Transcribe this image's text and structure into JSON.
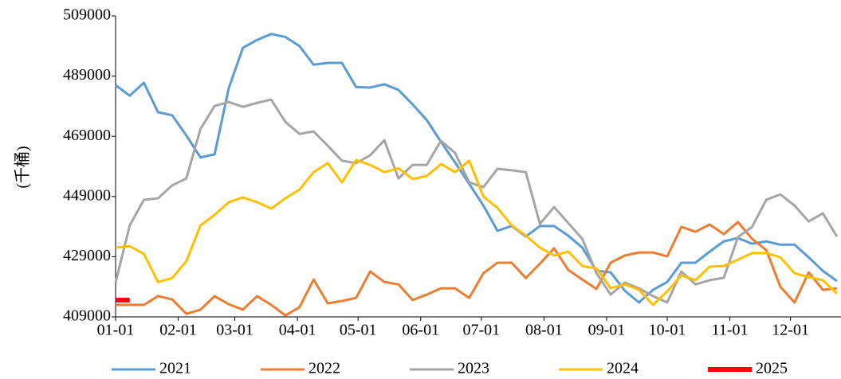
{
  "chart_data": {
    "type": "line",
    "y_label": "(千桶)",
    "x": [
      0,
      7,
      14,
      21,
      28,
      35,
      42,
      49,
      56,
      63,
      70,
      77,
      84,
      91,
      98,
      105,
      112,
      119,
      126,
      133,
      140,
      147,
      154,
      161,
      168,
      175,
      182,
      189,
      196,
      203,
      210,
      217,
      224,
      231,
      238,
      245,
      252,
      259,
      266,
      273,
      280,
      287,
      294,
      301,
      308,
      315,
      322,
      329,
      336,
      343,
      350,
      357
    ],
    "xlim": [
      0,
      359
    ],
    "xticks": [
      {
        "value": 0,
        "label": "01-01"
      },
      {
        "value": 31,
        "label": "02-01"
      },
      {
        "value": 59,
        "label": "03-01"
      },
      {
        "value": 90,
        "label": "04-01"
      },
      {
        "value": 120,
        "label": "05-01"
      },
      {
        "value": 151,
        "label": "06-01"
      },
      {
        "value": 181,
        "label": "07-01"
      },
      {
        "value": 212,
        "label": "08-01"
      },
      {
        "value": 243,
        "label": "09-01"
      },
      {
        "value": 273,
        "label": "10-01"
      },
      {
        "value": 304,
        "label": "11-01"
      },
      {
        "value": 334,
        "label": "12-01"
      }
    ],
    "ylim": [
      409000,
      509000
    ],
    "yticks": [
      409000,
      429000,
      449000,
      469000,
      489000,
      509000
    ],
    "legend": "bottom",
    "series": [
      {
        "name": "2021",
        "color": "#5b9bd5",
        "values": [
          486000,
          482500,
          486800,
          477000,
          476000,
          469300,
          462000,
          463000,
          485000,
          498400,
          501000,
          503000,
          502000,
          499000,
          492800,
          493400,
          493400,
          485400,
          485200,
          486300,
          484400,
          479600,
          474400,
          467200,
          460300,
          453200,
          446000,
          437600,
          439200,
          435700,
          439200,
          439200,
          436000,
          432000,
          424300,
          423800,
          417700,
          413800,
          418000,
          420600,
          427000,
          427000,
          430700,
          434100,
          435200,
          433300,
          434100,
          433000,
          433000,
          428800,
          424300,
          420900
        ]
      },
      {
        "name": "2022",
        "color": "#ed7d31",
        "values": [
          413000,
          413000,
          413000,
          415900,
          414800,
          410000,
          411400,
          415900,
          413200,
          411400,
          415900,
          413000,
          409500,
          412200,
          421400,
          413500,
          414300,
          415300,
          424100,
          420600,
          419800,
          414600,
          416400,
          418500,
          418500,
          415300,
          423500,
          427000,
          427000,
          421900,
          426700,
          431800,
          424600,
          421400,
          418300,
          427000,
          429400,
          430400,
          430400,
          429100,
          438900,
          437300,
          439700,
          436500,
          440500,
          434900,
          431200,
          419000,
          413800,
          423800,
          418000,
          418500
        ]
      },
      {
        "name": "2023",
        "color": "#a5a5a5",
        "values": [
          420400,
          439400,
          447900,
          448400,
          452700,
          455000,
          471400,
          479100,
          480400,
          478800,
          480100,
          481200,
          473800,
          469800,
          470600,
          465900,
          460900,
          460100,
          462700,
          467700,
          455000,
          459500,
          459500,
          467500,
          463500,
          453700,
          452100,
          458200,
          457700,
          457100,
          439900,
          445500,
          440200,
          434900,
          423500,
          416400,
          420400,
          418500,
          415900,
          413800,
          424100,
          419800,
          421200,
          422000,
          435500,
          438900,
          447900,
          449700,
          446000,
          440700,
          443400,
          435700
        ]
      },
      {
        "name": "2024",
        "color": "#ffc000",
        "values": [
          432000,
          432500,
          429900,
          420600,
          421900,
          427500,
          439400,
          442900,
          447100,
          448700,
          447100,
          445000,
          448400,
          451300,
          457100,
          460100,
          453700,
          461100,
          459500,
          457100,
          458400,
          454800,
          455800,
          459800,
          457100,
          460900,
          449000,
          445200,
          439400,
          436000,
          432000,
          429400,
          430700,
          425900,
          425100,
          418500,
          419800,
          418000,
          413000,
          417500,
          422800,
          421200,
          425700,
          425900,
          428000,
          430200,
          430200,
          428800,
          423500,
          422200,
          421200,
          416700
        ]
      },
      {
        "name": "2025",
        "color": "#ff0000",
        "values": [
          414600,
          414600,
          null,
          null,
          null,
          null,
          null,
          null,
          null,
          null,
          null,
          null,
          null,
          null,
          null,
          null,
          null,
          null,
          null,
          null,
          null,
          null,
          null,
          null,
          null,
          null,
          null,
          null,
          null,
          null,
          null,
          null,
          null,
          null,
          null,
          null,
          null,
          null,
          null,
          null,
          null,
          null,
          null,
          null,
          null,
          null,
          null,
          null,
          null,
          null,
          null,
          null
        ]
      }
    ]
  }
}
